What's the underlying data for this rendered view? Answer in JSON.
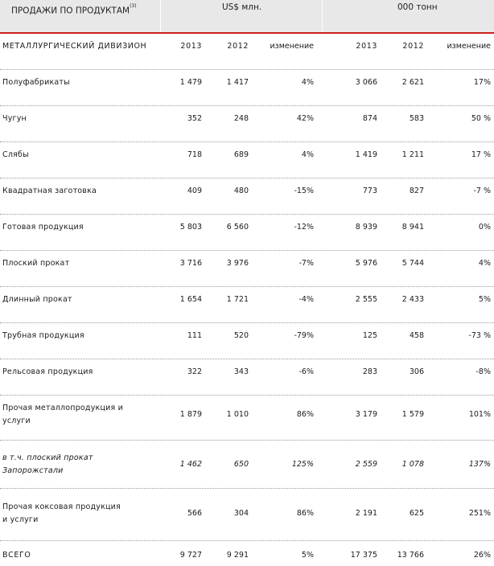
{
  "header": {
    "title": "ПРОДАЖИ ПО ПРОДУКТАМ",
    "title_note": "(3)",
    "group_usd": "US$ млн.",
    "group_tonnes": "000 тонн"
  },
  "section": {
    "label": "МЕТАЛЛУРГИЧЕСКИЙ ДИВИЗИОН",
    "cols": [
      "2013",
      "2012",
      "изменение",
      "2013",
      "2012",
      "изменение"
    ]
  },
  "rows": [
    {
      "label": "Полуфабрикаты",
      "v": [
        "1 479",
        "1 417",
        "4%",
        "3 066",
        "2 621",
        "17%"
      ]
    },
    {
      "label": "Чугун",
      "v": [
        "352",
        "248",
        "42%",
        "874",
        "583",
        "50 %"
      ]
    },
    {
      "label": "Слябы",
      "v": [
        "718",
        "689",
        "4%",
        "1 419",
        "1 211",
        "17 %"
      ]
    },
    {
      "label": "Квадратная заготовка",
      "v": [
        "409",
        "480",
        "-15%",
        "773",
        "827",
        "-7 %"
      ]
    },
    {
      "label": "Готовая продукция",
      "v": [
        "5 803",
        "6 560",
        "-12%",
        "8 939",
        "8 941",
        "0%"
      ]
    },
    {
      "label": "Плоский прокат",
      "v": [
        "3 716",
        "3 976",
        "-7%",
        "5 976",
        "5 744",
        "4%"
      ]
    },
    {
      "label": "Длинный прокат",
      "v": [
        "1 654",
        "1 721",
        "-4%",
        "2 555",
        "2 433",
        "5%"
      ]
    },
    {
      "label": "Трубная продукция",
      "v": [
        "111",
        "520",
        "-79%",
        "125",
        "458",
        "-73 %"
      ]
    },
    {
      "label": "Рельсовая продукция",
      "v": [
        "322",
        "343",
        "-6%",
        "283",
        "306",
        "-8%"
      ]
    },
    {
      "label": "Прочая металлопродукция и услуги",
      "v": [
        "1 879",
        "1 010",
        "86%",
        "3 179",
        "1 579",
        "101%"
      ]
    },
    {
      "label": "в т.ч. плоский прокат Запорожстали",
      "v": [
        "1 462",
        "650",
        "125%",
        "2 559",
        "1 078",
        "137%"
      ]
    },
    {
      "label": "Прочая коксовая продукция и услуги",
      "v": [
        "566",
        "304",
        "86%",
        "2 191",
        "625",
        "251%"
      ]
    },
    {
      "label": "ВСЕГО",
      "v": [
        "9 727",
        "9 291",
        "5%",
        "17 375",
        "13 766",
        "26%"
      ]
    }
  ]
}
